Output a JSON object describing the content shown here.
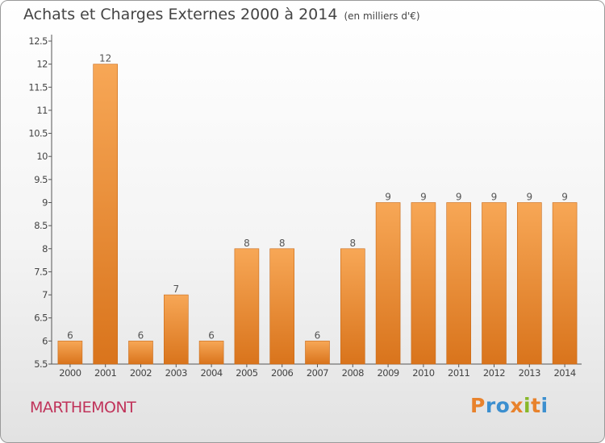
{
  "header": {
    "title": "Achats et Charges Externes 2000 à 2014",
    "unit": "(en milliers d'€)"
  },
  "footer": {
    "commune": "MARTHEMONT",
    "logo_text": "Proxiti"
  },
  "colors": {
    "bar_light": "#f7a756",
    "bar_dark": "#d9741c",
    "bar_edge": "#c96a18",
    "commune": "#c0335a",
    "logo_letters": [
      "#e8822c",
      "#3c8fcf",
      "#3c8fcf",
      "#e8822c",
      "#88b82a",
      "#e8822c",
      "#3c8fcf"
    ]
  },
  "chart_data": {
    "type": "bar",
    "title": "Achats et Charges Externes 2000 à 2014",
    "subtitle": "(en milliers d'€)",
    "xlabel": "",
    "ylabel": "",
    "categories": [
      "2000",
      "2001",
      "2002",
      "2003",
      "2004",
      "2005",
      "2006",
      "2007",
      "2008",
      "2009",
      "2010",
      "2011",
      "2012",
      "2013",
      "2014"
    ],
    "values": [
      6,
      12,
      6,
      7,
      6,
      8,
      8,
      6,
      8,
      9,
      9,
      9,
      9,
      9,
      9
    ],
    "data_labels": [
      "6",
      "12",
      "6",
      "7",
      "6",
      "8",
      "8",
      "6",
      "8",
      "9",
      "9",
      "9",
      "9",
      "9",
      "9"
    ],
    "ylim": [
      5.5,
      12.5
    ],
    "yticks": [
      5.5,
      6,
      6.5,
      7,
      7.5,
      8,
      8.5,
      9,
      9.5,
      10,
      10.5,
      11,
      11.5,
      12,
      12.5
    ],
    "ytick_labels": [
      "5.5",
      "6",
      "6.5",
      "7",
      "7.5",
      "8",
      "8.5",
      "9",
      "9.5",
      "10",
      "10.5",
      "11",
      "11.5",
      "12",
      "12.5"
    ],
    "grid": false,
    "legend": "none"
  }
}
